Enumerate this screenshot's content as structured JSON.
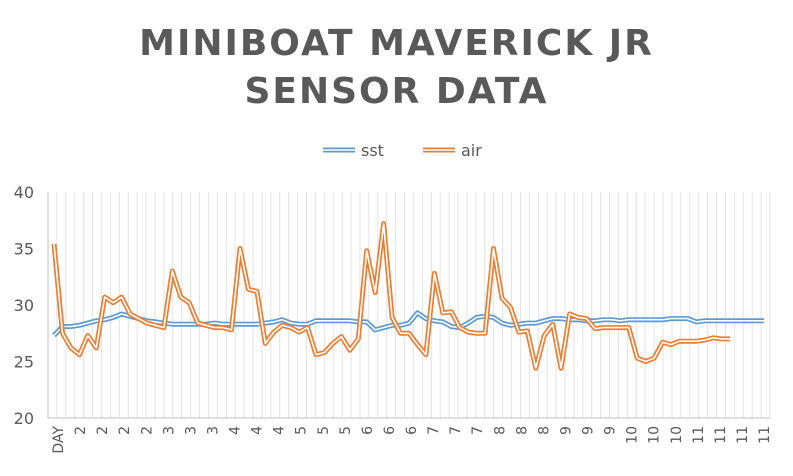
{
  "chart_data": {
    "type": "line",
    "title_line1": "MINIBOAT MAVERICK JR",
    "title_line2": "SENSOR DATA",
    "xlabel": "",
    "ylabel": "",
    "ylim": [
      20,
      40
    ],
    "yticks": [
      20,
      25,
      30,
      35,
      40
    ],
    "grid": "vertical",
    "legend_position": "top",
    "x_tick_labels": [
      "DAY",
      "2",
      "2",
      "2",
      "2",
      "3",
      "3",
      "3",
      "4",
      "4",
      "4",
      "5",
      "5",
      "5",
      "6",
      "6",
      "6",
      "7",
      "7",
      "7",
      "8",
      "8",
      "8",
      "9",
      "9",
      "9",
      "10",
      "10",
      "10",
      "11",
      "11",
      "11",
      "11"
    ],
    "series": [
      {
        "name": "sst",
        "color": "#5B9BD5",
        "values": [
          27.3,
          28.1,
          28.1,
          28.2,
          28.4,
          28.6,
          28.7,
          28.9,
          29.2,
          29.0,
          28.8,
          28.6,
          28.5,
          28.4,
          28.3,
          28.3,
          28.3,
          28.3,
          28.3,
          28.4,
          28.3,
          28.3,
          28.3,
          28.3,
          28.3,
          28.4,
          28.5,
          28.7,
          28.4,
          28.3,
          28.3,
          28.6,
          28.6,
          28.6,
          28.6,
          28.6,
          28.5,
          28.5,
          27.8,
          28.0,
          28.2,
          28.2,
          28.4,
          29.3,
          28.8,
          28.6,
          28.5,
          28.1,
          28.0,
          28.4,
          28.9,
          29.0,
          28.9,
          28.4,
          28.2,
          28.3,
          28.4,
          28.4,
          28.6,
          28.8,
          28.8,
          28.7,
          28.7,
          28.6,
          28.6,
          28.7,
          28.7,
          28.6,
          28.7,
          28.7,
          28.7,
          28.7,
          28.7,
          28.8,
          28.8,
          28.8,
          28.5,
          28.6,
          28.6,
          28.6,
          28.6,
          28.6,
          28.6,
          28.6,
          28.6
        ]
      },
      {
        "name": "air",
        "color": "#ED7D31",
        "values": [
          35.4,
          27.5,
          26.2,
          25.6,
          27.3,
          26.2,
          30.7,
          30.2,
          30.7,
          29.2,
          28.8,
          28.4,
          28.2,
          28.0,
          33.0,
          30.7,
          30.2,
          28.4,
          28.2,
          28.0,
          28.0,
          27.8,
          35.0,
          31.4,
          31.2,
          26.6,
          27.6,
          28.2,
          28.0,
          27.6,
          28.0,
          25.6,
          25.8,
          26.6,
          27.2,
          26.0,
          27.0,
          34.8,
          31.1,
          37.2,
          28.9,
          27.5,
          27.5,
          26.5,
          25.6,
          32.8,
          29.3,
          29.4,
          28.0,
          27.6,
          27.5,
          27.5,
          35.0,
          30.6,
          29.8,
          27.6,
          27.7,
          24.4,
          27.3,
          28.3,
          24.4,
          29.2,
          28.9,
          28.8,
          27.9,
          28.0,
          28.0,
          28.0,
          28.0,
          25.3,
          25.0,
          25.3,
          26.7,
          26.5,
          26.8,
          26.8,
          26.8,
          26.9,
          27.1,
          27.0,
          27.0
        ]
      }
    ]
  }
}
